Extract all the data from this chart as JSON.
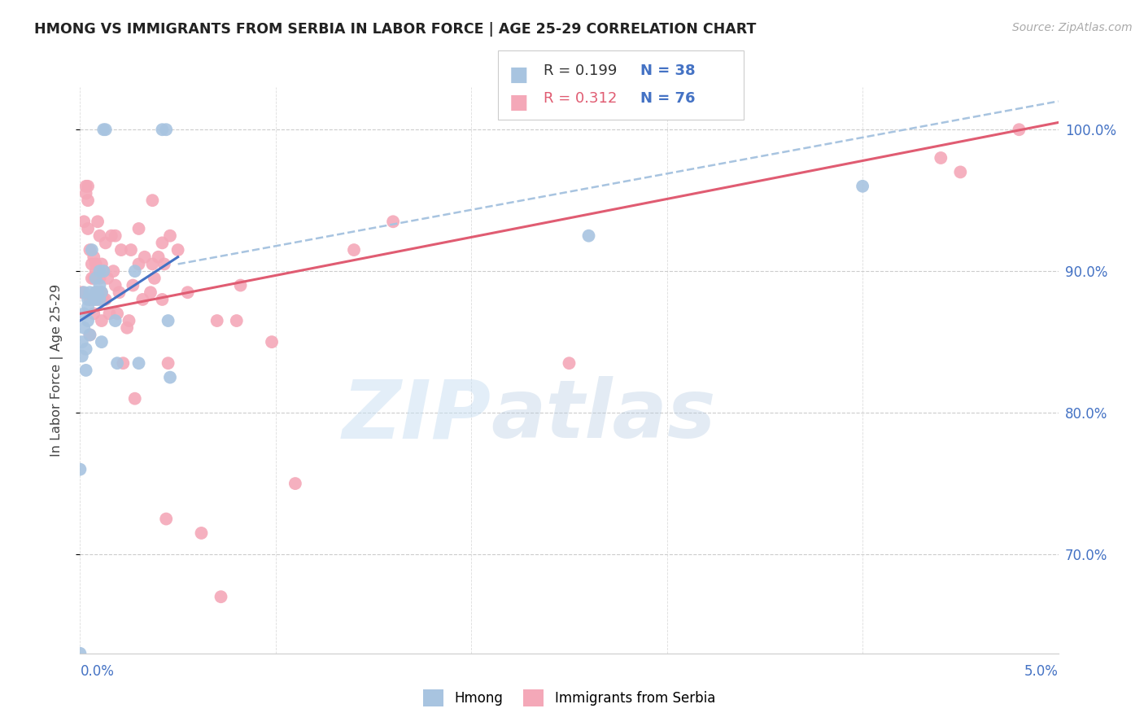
{
  "title": "HMONG VS IMMIGRANTS FROM SERBIA IN LABOR FORCE | AGE 25-29 CORRELATION CHART",
  "source": "Source: ZipAtlas.com",
  "ylabel": "In Labor Force | Age 25-29",
  "xmin": 0.0,
  "xmax": 5.0,
  "ymin": 63.0,
  "ymax": 103.0,
  "yticks": [
    70.0,
    80.0,
    90.0,
    100.0
  ],
  "ytick_labels": [
    "70.0%",
    "80.0%",
    "90.0%",
    "100.0%"
  ],
  "legend_r1": "R = 0.199",
  "legend_n1": "N = 38",
  "legend_r2": "R = 0.312",
  "legend_n2": "N = 76",
  "label1": "Hmong",
  "label2": "Immigrants from Serbia",
  "color1": "#a8c4e0",
  "color2": "#f4a8b8",
  "line_color1": "#4472c4",
  "line_color2": "#e05c72",
  "dashed_line_color": "#a8c4e0",
  "watermark_zip": "ZIP",
  "watermark_atlas": "atlas",
  "hmong_x": [
    0.12,
    0.13,
    0.42,
    0.44,
    0.0,
    0.0,
    0.01,
    0.01,
    0.02,
    0.02,
    0.02,
    0.03,
    0.03,
    0.04,
    0.04,
    0.04,
    0.05,
    0.05,
    0.06,
    0.07,
    0.08,
    0.08,
    0.08,
    0.09,
    0.1,
    0.1,
    0.1,
    0.11,
    0.11,
    0.12,
    0.18,
    0.19,
    0.28,
    0.3,
    0.45,
    0.46,
    2.6,
    4.0
  ],
  "hmong_y": [
    100.0,
    100.0,
    100.0,
    100.0,
    63.0,
    76.0,
    84.0,
    85.0,
    86.0,
    87.0,
    88.5,
    83.0,
    84.5,
    86.5,
    87.5,
    88.0,
    85.5,
    88.5,
    91.5,
    88.0,
    88.0,
    88.5,
    89.5,
    88.5,
    88.0,
    89.0,
    90.0,
    85.0,
    88.5,
    90.0,
    86.5,
    83.5,
    90.0,
    83.5,
    86.5,
    82.5,
    92.5,
    96.0
  ],
  "serbia_x": [
    0.01,
    0.02,
    0.03,
    0.03,
    0.04,
    0.04,
    0.04,
    0.05,
    0.05,
    0.05,
    0.06,
    0.06,
    0.06,
    0.07,
    0.07,
    0.07,
    0.08,
    0.08,
    0.08,
    0.09,
    0.09,
    0.1,
    0.1,
    0.1,
    0.11,
    0.11,
    0.11,
    0.12,
    0.12,
    0.13,
    0.13,
    0.14,
    0.15,
    0.16,
    0.17,
    0.18,
    0.18,
    0.19,
    0.2,
    0.21,
    0.22,
    0.24,
    0.25,
    0.26,
    0.27,
    0.28,
    0.3,
    0.3,
    0.32,
    0.33,
    0.36,
    0.37,
    0.37,
    0.38,
    0.4,
    0.42,
    0.42,
    0.43,
    0.44,
    0.45,
    0.46,
    0.5,
    0.55,
    0.62,
    0.7,
    0.72,
    0.8,
    0.82,
    0.98,
    1.1,
    1.4,
    1.6,
    2.5,
    4.4,
    4.5,
    4.8
  ],
  "serbia_y": [
    88.5,
    93.5,
    95.5,
    96.0,
    93.0,
    95.0,
    96.0,
    85.5,
    88.0,
    91.5,
    88.0,
    89.5,
    90.5,
    87.0,
    89.5,
    91.0,
    88.5,
    90.0,
    90.5,
    88.0,
    93.5,
    88.5,
    89.5,
    92.5,
    86.5,
    88.5,
    90.5,
    88.0,
    90.0,
    88.0,
    92.0,
    89.5,
    87.0,
    92.5,
    90.0,
    89.0,
    92.5,
    87.0,
    88.5,
    91.5,
    83.5,
    86.0,
    86.5,
    91.5,
    89.0,
    81.0,
    90.5,
    93.0,
    88.0,
    91.0,
    88.5,
    90.5,
    95.0,
    89.5,
    91.0,
    88.0,
    92.0,
    90.5,
    72.5,
    83.5,
    92.5,
    91.5,
    88.5,
    71.5,
    86.5,
    67.0,
    86.5,
    89.0,
    85.0,
    75.0,
    91.5,
    93.5,
    83.5,
    98.0,
    97.0,
    100.0
  ],
  "blue_line_x0": 0.0,
  "blue_line_y0": 86.5,
  "blue_line_x1": 0.5,
  "blue_line_y1": 91.0,
  "pink_line_x0": 0.0,
  "pink_line_y0": 87.0,
  "pink_line_x1": 5.0,
  "pink_line_y1": 100.5,
  "dash_line_x0": 0.5,
  "dash_line_y0": 90.5,
  "dash_line_x1": 5.0,
  "dash_line_y1": 102.0
}
